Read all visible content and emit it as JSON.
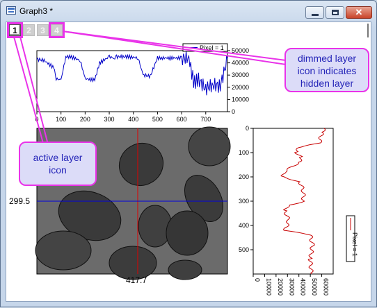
{
  "window": {
    "title": "Graph3 *",
    "close_glyph": "✕"
  },
  "layers": [
    {
      "label": "1",
      "state": "active"
    },
    {
      "label": "2",
      "state": "dimmed"
    },
    {
      "label": "3",
      "state": "dimmed"
    },
    {
      "label": "4",
      "state": "dimmed"
    }
  ],
  "callouts": {
    "hidden": [
      "dimmed layer",
      "icon indicates",
      "hidden layer"
    ],
    "active": [
      "active layer",
      "icon"
    ]
  },
  "crosshair": {
    "y_value": "299.5",
    "x_value": "417.7"
  },
  "chart_data": [
    {
      "type": "line",
      "panel": "horizontal-profile",
      "legend": "Pixel = 1",
      "xlim": [
        0,
        790
      ],
      "ylim": [
        0,
        50000
      ],
      "x_ticks": [
        "0",
        "100",
        "200",
        "300",
        "400",
        "500",
        "600",
        "700"
      ],
      "y_ticks": [
        "0",
        "10000",
        "20000",
        "30000",
        "40000",
        "50000"
      ],
      "x": [
        0,
        30,
        70,
        80,
        100,
        120,
        140,
        180,
        200,
        240,
        260,
        300,
        320,
        330,
        380,
        420,
        440,
        470,
        500,
        520,
        600,
        630,
        650,
        670,
        700,
        730,
        760,
        790
      ],
      "values": [
        43000,
        42000,
        36000,
        27000,
        26000,
        45000,
        45000,
        42000,
        27000,
        26000,
        40000,
        45000,
        44000,
        45000,
        45000,
        44000,
        30000,
        29000,
        44000,
        44000,
        44000,
        44000,
        24000,
        26000,
        19000,
        22000,
        21000,
        43000
      ]
    },
    {
      "type": "line",
      "panel": "vertical-profile",
      "legend": "Pixel = 1",
      "xlim": [
        0,
        70000
      ],
      "ylim": [
        0,
        600
      ],
      "x_ticks": [
        "0",
        "10000",
        "20000",
        "30000",
        "40000",
        "50000",
        "60000"
      ],
      "y_ticks": [
        "0",
        "100",
        "200",
        "300",
        "400",
        "500"
      ],
      "y": [
        0,
        20,
        60,
        80,
        100,
        120,
        140,
        180,
        200,
        220,
        260,
        300,
        320,
        340,
        380,
        420,
        440,
        480,
        540,
        600
      ],
      "values": [
        62000,
        60000,
        58000,
        40000,
        38000,
        42000,
        40000,
        27000,
        26000,
        41000,
        44000,
        44000,
        30000,
        28000,
        31000,
        28000,
        50000,
        52000,
        50000,
        51000
      ]
    }
  ]
}
